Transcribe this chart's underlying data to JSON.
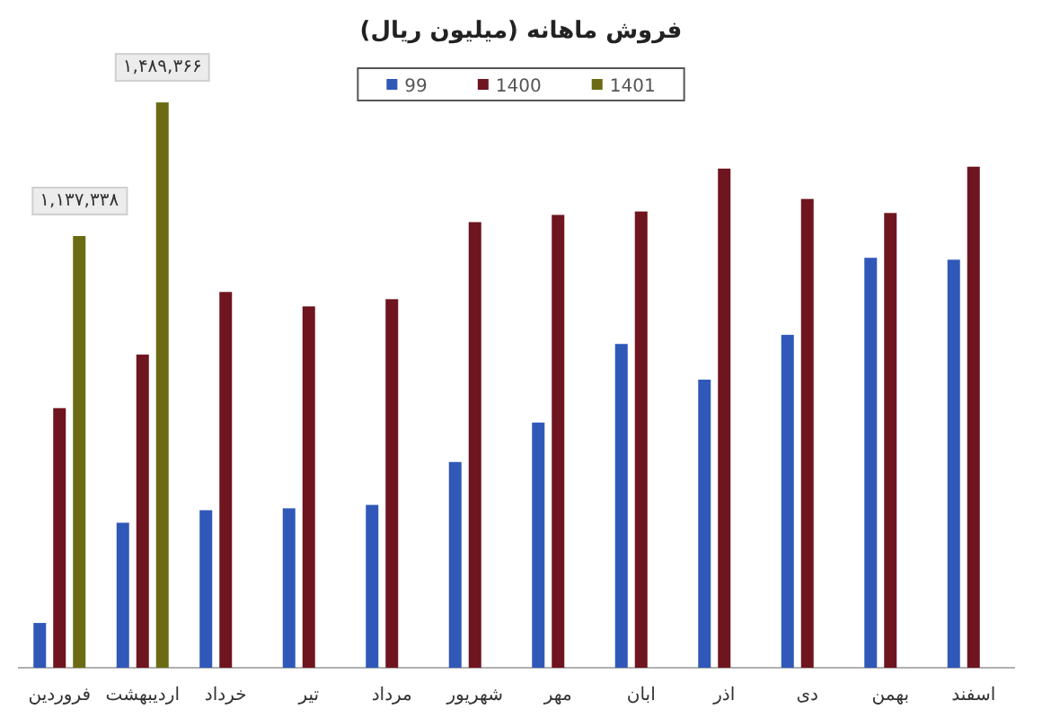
{
  "chart_data": {
    "type": "bar",
    "title": "فروش ماهانه (میلیون ریال)",
    "categories": [
      "فروردین",
      "اردیبهشت",
      "خرداد",
      "تیر",
      "مرداد",
      "شهریور",
      "مهر",
      "ابان",
      "اذر",
      "دی",
      "بهمن",
      "اسفند"
    ],
    "series": [
      {
        "name": "99",
        "color": "#2f58b8",
        "values": [
          118000,
          382000,
          415000,
          420000,
          429000,
          542000,
          646000,
          853000,
          759000,
          877000,
          1080000,
          1075000
        ]
      },
      {
        "name": "1400",
        "color": "#6e1520",
        "values": [
          684000,
          825000,
          990000,
          952000,
          971000,
          1174000,
          1193000,
          1202000,
          1315000,
          1235000,
          1198000,
          1320000
        ]
      },
      {
        "name": "1401",
        "color": "#6b6b14",
        "values": [
          1137338,
          1489366,
          null,
          null,
          null,
          null,
          null,
          null,
          null,
          null,
          null,
          null
        ],
        "value_labels": [
          "۱,۱۳۷,۳۳۸",
          "۱,۴۸۹,۳۶۶",
          null,
          null,
          null,
          null,
          null,
          null,
          null,
          null,
          null,
          null
        ]
      }
    ],
    "ylim": [
      0,
      1570000
    ],
    "tick_labels": "x",
    "legend": "top"
  }
}
